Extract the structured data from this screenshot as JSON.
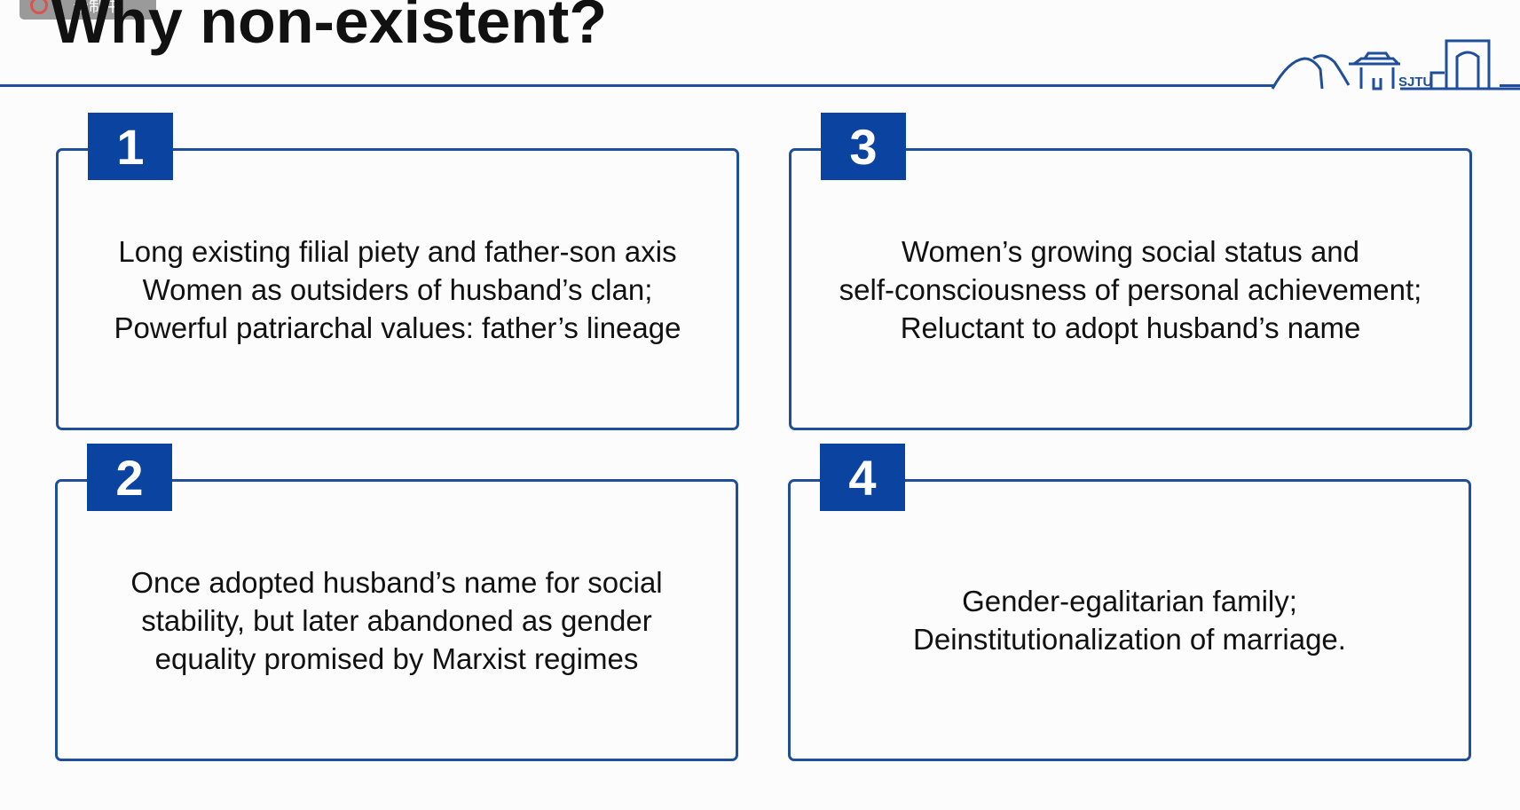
{
  "recording": {
    "label": "录制中"
  },
  "slide": {
    "title": "Why non-existent?",
    "logo_text": "SJTU",
    "cards": [
      {
        "number": "1",
        "lines": [
          "Long existing filial piety and father-son axis",
          "Women as outsiders of husband’s clan;",
          "Powerful patriarchal values: father’s lineage"
        ]
      },
      {
        "number": "2",
        "lines": [
          "Once adopted husband’s name for social",
          "stability, but later abandoned as gender",
          "equality promised by Marxist regimes"
        ]
      },
      {
        "number": "3",
        "lines": [
          "Women’s  growing social status and",
          "self-consciousness of personal achievement;",
          "Reluctant to adopt husband’s name"
        ]
      },
      {
        "number": "4",
        "lines": [
          "Gender-egalitarian family;",
          "Deinstitutionalization of marriage."
        ]
      }
    ]
  },
  "colors": {
    "accent": "#0a43a0",
    "border": "#1f4e9a",
    "text": "#111111",
    "background": "#fcfcfc"
  }
}
